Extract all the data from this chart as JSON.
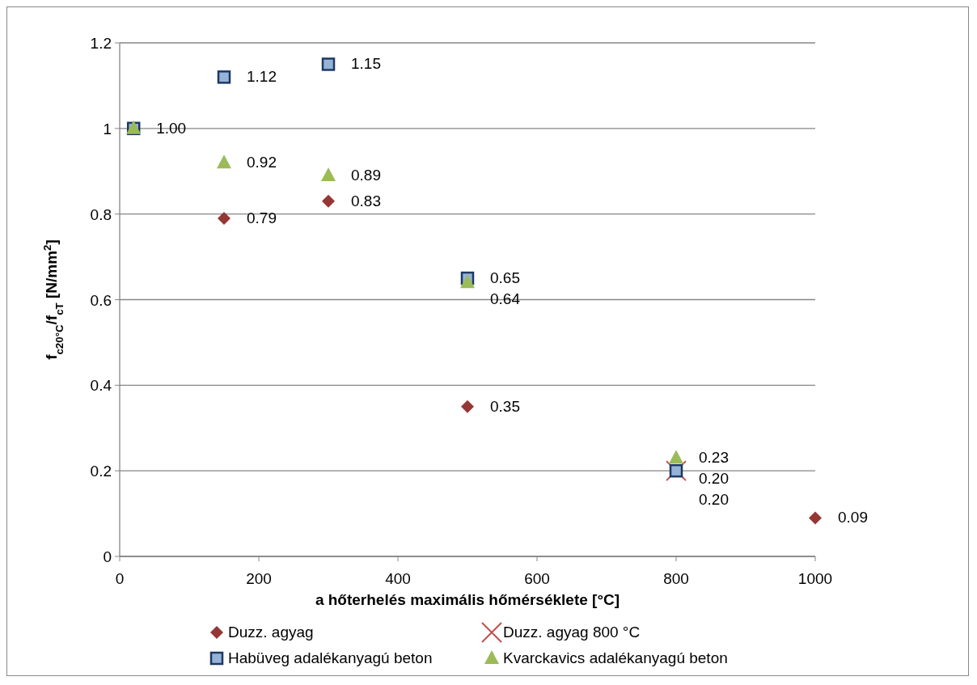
{
  "chart_data": {
    "type": "scatter",
    "xlabel": "a hőterhelés  maximális hőmérséklete [°C]",
    "ylabel": "f$_{c20°C}$/f$_{cT}$ [N/mm$^{2}$]",
    "xlim": [
      0,
      1000
    ],
    "xticks": [
      0,
      200,
      400,
      600,
      800,
      1000
    ],
    "ylim": [
      0,
      1.2
    ],
    "yticks": [
      0,
      0.2,
      0.4,
      0.6,
      0.8,
      1,
      1.2
    ],
    "grid": "y",
    "legend": "bottom",
    "series": [
      {
        "name": "Duzz. agyag",
        "color": "#953735",
        "marker": "diamond",
        "x": [
          150,
          300,
          500,
          1000
        ],
        "values": [
          0.79,
          0.83,
          0.35,
          0.09
        ],
        "value_labels": [
          "0.79",
          "0.83",
          "0.35",
          "0.09"
        ]
      },
      {
        "name": "Duzz. agyag 800 °C",
        "color": "#c0504d",
        "marker": "cross",
        "x": [
          800
        ],
        "values": [
          0.2
        ],
        "value_labels": [
          "0.20"
        ]
      },
      {
        "name": "Habüveg adalékanyagú beton",
        "color": "#95b3d7",
        "marker": "square",
        "x": [
          20,
          150,
          300,
          500,
          800
        ],
        "values": [
          1.0,
          1.12,
          1.15,
          0.65,
          0.2
        ],
        "value_labels": [
          "1.00",
          "1.12",
          "1.15",
          "0.65",
          "0.20"
        ]
      },
      {
        "name": "Kvarckavics adalékanyagú beton",
        "color": "#9bbb59",
        "marker": "triangle",
        "x": [
          20,
          150,
          300,
          500,
          800
        ],
        "values": [
          1.0,
          0.92,
          0.89,
          0.64,
          0.23
        ],
        "value_labels": [
          null,
          "0.92",
          "0.89",
          "0.64",
          "0.23"
        ]
      }
    ]
  }
}
